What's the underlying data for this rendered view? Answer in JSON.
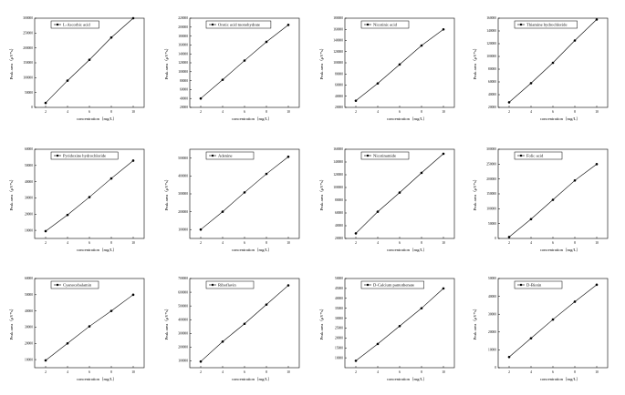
{
  "chart_data": [
    {
      "type": "line",
      "legend": "L-Ascorbic acid",
      "xlabel": "concentration（mg/L）",
      "ylabel": "Peak area（μV*s）",
      "x": [
        2,
        4,
        6,
        8,
        10
      ],
      "y": [
        15000,
        90000,
        160000,
        235000,
        300000
      ],
      "xlim": [
        1,
        11
      ],
      "ylim": [
        0,
        300000
      ],
      "yticks": [
        "0",
        "50000",
        "100000",
        "150000",
        "200000",
        "250000",
        "300000"
      ],
      "xticks": [
        "2",
        "4",
        "6",
        "8",
        "10"
      ]
    },
    {
      "type": "line",
      "legend": "Orotic acid monohydrate",
      "xlabel": "concentration（mg/L）",
      "ylabel": "Peak area（μV*s）",
      "x": [
        2,
        4,
        6,
        8,
        10
      ],
      "y": [
        40000,
        82000,
        125000,
        167000,
        205000
      ],
      "xlim": [
        1,
        11
      ],
      "ylim": [
        20000,
        220000
      ],
      "yticks": [
        "20000",
        "40000",
        "60000",
        "80000",
        "100000",
        "120000",
        "140000",
        "160000",
        "180000",
        "200000",
        "220000"
      ],
      "xticks": [
        "2",
        "4",
        "6",
        "8",
        "10"
      ]
    },
    {
      "type": "line",
      "legend": "Nicotinic acid",
      "xlabel": "concentration（mg/L）",
      "ylabel": "Peak area（μV*s）",
      "x": [
        2,
        4,
        6,
        8,
        10
      ],
      "y": [
        32000,
        63000,
        97000,
        131000,
        160000
      ],
      "xlim": [
        1,
        11
      ],
      "ylim": [
        20000,
        180000
      ],
      "yticks": [
        "20000",
        "40000",
        "60000",
        "80000",
        "100000",
        "120000",
        "140000",
        "160000",
        "180000"
      ],
      "xticks": [
        "2",
        "4",
        "6",
        "8",
        "10"
      ]
    },
    {
      "type": "line",
      "legend": "Thiamine hydrochloride",
      "xlabel": "concentration（mg/L）",
      "ylabel": "Peak area（μV*s）",
      "x": [
        2,
        4,
        6,
        8,
        10
      ],
      "y": [
        28000,
        58000,
        90000,
        125000,
        158000
      ],
      "xlim": [
        1,
        11
      ],
      "ylim": [
        20000,
        160000
      ],
      "yticks": [
        "20000",
        "40000",
        "60000",
        "80000",
        "100000",
        "120000",
        "140000",
        "160000"
      ],
      "xticks": [
        "2",
        "4",
        "6",
        "8",
        "10"
      ]
    },
    {
      "type": "line",
      "legend": "Pyridoxine hydrochloride",
      "xlabel": "concentration（mg/L）",
      "ylabel": "Peak area（μV*s）",
      "x": [
        2,
        4,
        6,
        8,
        10
      ],
      "y": [
        9500,
        19500,
        30500,
        42000,
        53000
      ],
      "xlim": [
        1,
        11
      ],
      "ylim": [
        5000,
        60000
      ],
      "yticks": [
        "10000",
        "20000",
        "30000",
        "40000",
        "50000",
        "60000"
      ],
      "xticks": [
        "2",
        "4",
        "6",
        "8",
        "10"
      ]
    },
    {
      "type": "line",
      "legend": "Adenine",
      "xlabel": "concentration（mg/L）",
      "ylabel": "Peak area（μV*s）",
      "x": [
        2,
        4,
        6,
        8,
        10
      ],
      "y": [
        100000,
        200000,
        308000,
        412000,
        508000
      ],
      "xlim": [
        1,
        11
      ],
      "ylim": [
        50000,
        550000
      ],
      "yticks": [
        "100000",
        "200000",
        "300000",
        "400000",
        "500000"
      ],
      "xticks": [
        "2",
        "4",
        "6",
        "8",
        "10"
      ]
    },
    {
      "type": "line",
      "legend": "Nicotinamide",
      "xlabel": "concentration（mg/L）",
      "ylabel": "Peak area（μV*s）",
      "x": [
        2,
        4,
        6,
        8,
        10
      ],
      "y": [
        28000,
        62000,
        92000,
        123000,
        153000
      ],
      "xlim": [
        1,
        11
      ],
      "ylim": [
        20000,
        160000
      ],
      "yticks": [
        "20000",
        "40000",
        "60000",
        "80000",
        "100000",
        "120000",
        "140000",
        "160000"
      ],
      "xticks": [
        "2",
        "4",
        "6",
        "8",
        "10"
      ]
    },
    {
      "type": "line",
      "legend": "Folic acid",
      "xlabel": "concentration（mg/L）",
      "ylabel": "Peak area（μV*s）",
      "x": [
        2,
        4,
        6,
        8,
        10
      ],
      "y": [
        5000,
        65000,
        130000,
        195000,
        250000
      ],
      "xlim": [
        1,
        11
      ],
      "ylim": [
        0,
        300000
      ],
      "yticks": [
        "0",
        "50000",
        "100000",
        "150000",
        "200000",
        "250000",
        "300000"
      ],
      "xticks": [
        "2",
        "4",
        "6",
        "8",
        "10"
      ]
    },
    {
      "type": "line",
      "legend": "Cyanocobalamin",
      "xlabel": "concentration（mg/L）",
      "ylabel": "Peak area（μV*s）",
      "x": [
        2,
        4,
        6,
        8,
        10
      ],
      "y": [
        9500,
        20000,
        30500,
        40000,
        50000
      ],
      "xlim": [
        1,
        11
      ],
      "ylim": [
        5000,
        60000
      ],
      "yticks": [
        "10000",
        "20000",
        "30000",
        "40000",
        "50000",
        "60000"
      ],
      "xticks": [
        "2",
        "4",
        "6",
        "8",
        "10"
      ]
    },
    {
      "type": "line",
      "legend": "Riboflavin",
      "xlabel": "concentration（mg/L）",
      "ylabel": "Peak area（μV*s）",
      "x": [
        2,
        4,
        6,
        8,
        10
      ],
      "y": [
        95000,
        240000,
        370000,
        510000,
        650000
      ],
      "xlim": [
        1,
        11
      ],
      "ylim": [
        50000,
        700000
      ],
      "yticks": [
        "100000",
        "200000",
        "300000",
        "400000",
        "500000",
        "600000",
        "700000"
      ],
      "xticks": [
        "2",
        "4",
        "6",
        "8",
        "10"
      ]
    },
    {
      "type": "line",
      "legend": "D-Calcium pantothenate",
      "xlabel": "concentration（mg/L）",
      "ylabel": "Peak area（μV*s）",
      "x": [
        2,
        4,
        6,
        8,
        10
      ],
      "y": [
        8500,
        17000,
        26000,
        35000,
        45000
      ],
      "xlim": [
        1,
        11
      ],
      "ylim": [
        5000,
        50000
      ],
      "yticks": [
        "10000",
        "15000",
        "20000",
        "25000",
        "30000",
        "35000",
        "40000",
        "45000",
        "50000"
      ],
      "xticks": [
        "2",
        "4",
        "6",
        "8",
        "10"
      ]
    },
    {
      "type": "line",
      "legend": "D-Biotin",
      "xlabel": "concentration（mg/L）",
      "ylabel": "Peak area（μV*s）",
      "x": [
        2,
        4,
        6,
        8,
        10
      ],
      "y": [
        6000,
        16500,
        27000,
        37000,
        46500
      ],
      "xlim": [
        1,
        11
      ],
      "ylim": [
        0,
        50000
      ],
      "yticks": [
        "0",
        "10000",
        "20000",
        "30000",
        "40000",
        "50000"
      ],
      "xticks": [
        "2",
        "4",
        "6",
        "8",
        "10"
      ]
    }
  ]
}
